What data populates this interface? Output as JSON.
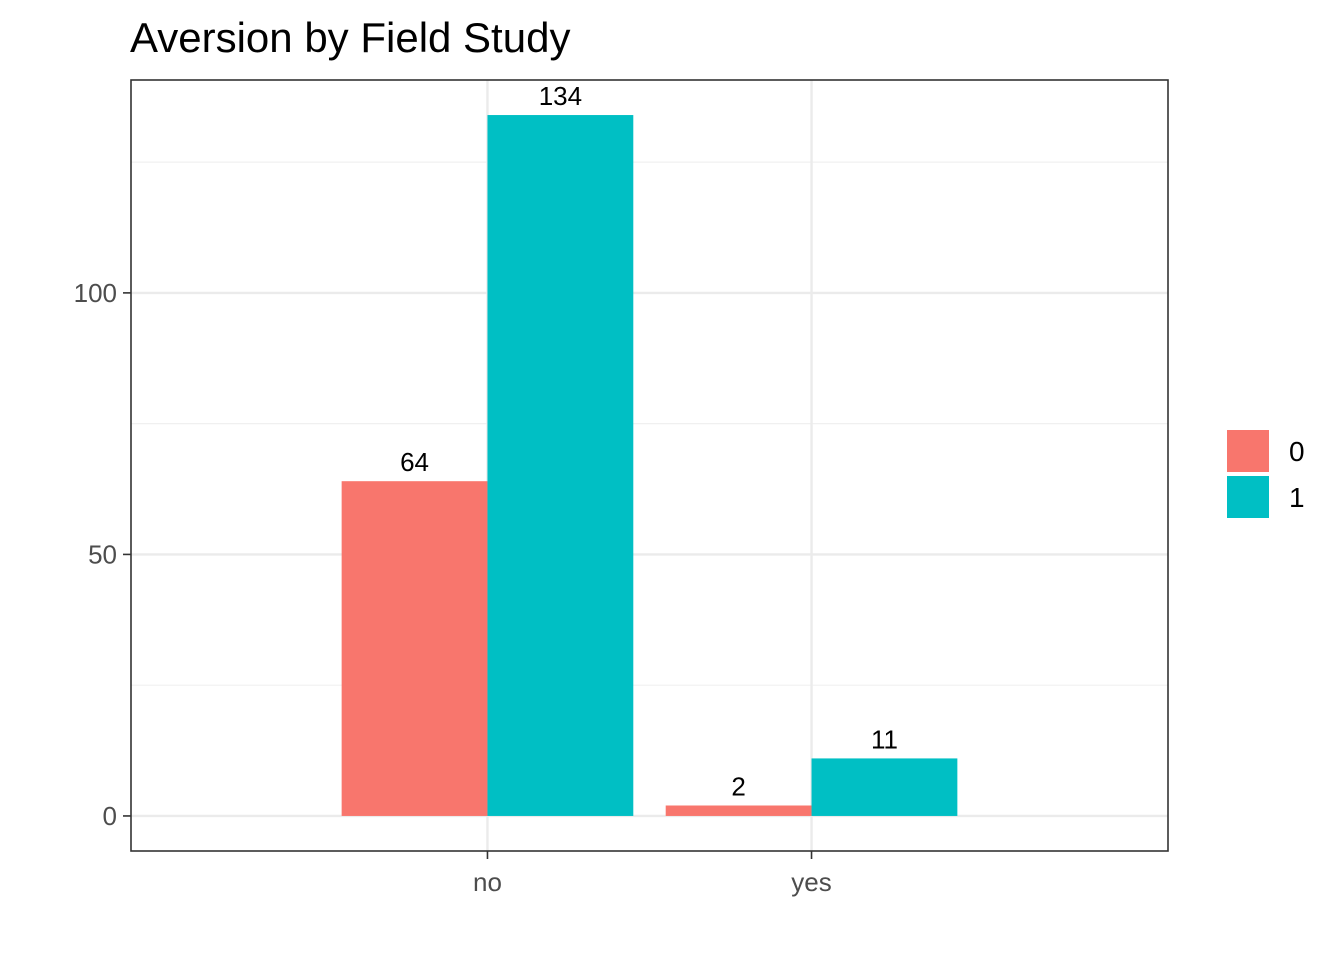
{
  "chart_data": {
    "type": "bar",
    "title": "Aversion by Field Study",
    "xlabel": "",
    "ylabel": "",
    "categories": [
      "no",
      "yes"
    ],
    "series": [
      {
        "name": "0",
        "values": [
          64,
          2
        ],
        "color": "#F8766D"
      },
      {
        "name": "1",
        "values": [
          134,
          11
        ],
        "color": "#00BFC4"
      }
    ],
    "ylim": [
      -6.7,
      140.7
    ],
    "yticks": [
      0,
      50,
      100
    ],
    "grid": true,
    "legend_position": "right",
    "data_labels": true
  }
}
